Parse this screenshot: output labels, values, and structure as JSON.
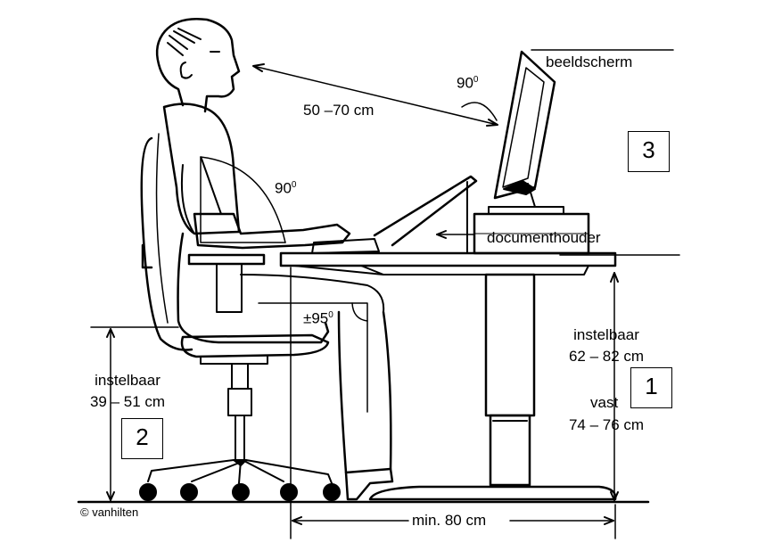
{
  "labels": {
    "monitor": "beeldscherm",
    "document_holder": "documenthouder",
    "eye_distance": "50 –70 cm",
    "monitor_angle": "90",
    "arm_angle": "90",
    "knee_angle": "±95",
    "degree_mark": "0",
    "chair_height_title": "instelbaar",
    "chair_height_range": "39 – 51 cm",
    "desk_adjustable_title": "instelbaar",
    "desk_adjustable_range": "62 – 82 cm",
    "desk_fixed_title": "vast",
    "desk_fixed_range": "74 – 76 cm",
    "depth": "min. 80 cm",
    "copyright": "© vanhilten"
  },
  "boxes": {
    "desk": "1",
    "chair": "2",
    "monitor": "3"
  }
}
